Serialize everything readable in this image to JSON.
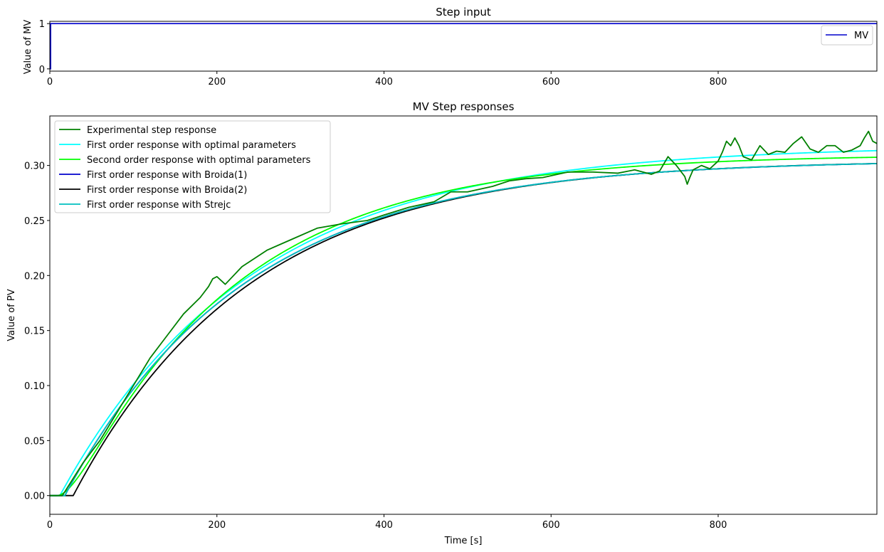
{
  "chart_data": [
    {
      "type": "line",
      "title": "Step input",
      "xlabel": "",
      "ylabel": "Value of MV",
      "xlim": [
        0,
        990
      ],
      "ylim": [
        -0.05,
        1.05
      ],
      "xticks": [
        0,
        200,
        400,
        600,
        800
      ],
      "yticks": [
        0,
        1
      ],
      "grid": false,
      "legend_position": "upper right",
      "series": [
        {
          "name": "MV",
          "color": "#0000cc",
          "x": [
            0,
            1,
            1,
            990
          ],
          "y": [
            0,
            0,
            1,
            1
          ]
        }
      ]
    },
    {
      "type": "line",
      "title": "MV Step responses",
      "xlabel": "Time [s]",
      "ylabel": "Value of PV",
      "xlim": [
        0,
        990
      ],
      "ylim": [
        -0.017,
        0.345
      ],
      "xticks": [
        0,
        200,
        400,
        600,
        800
      ],
      "yticks": [
        0.0,
        0.05,
        0.1,
        0.15,
        0.2,
        0.25,
        0.3
      ],
      "ytick_labels": [
        "0.00",
        "0.05",
        "0.10",
        "0.15",
        "0.20",
        "0.25",
        "0.30"
      ],
      "grid": false,
      "legend_position": "upper left",
      "series": [
        {
          "name": "Experimental step response",
          "color": "#008000",
          "x": [
            0,
            15,
            25,
            40,
            60,
            80,
            100,
            120,
            140,
            160,
            180,
            190,
            195,
            200,
            210,
            230,
            260,
            290,
            320,
            350,
            380,
            400,
            430,
            460,
            480,
            500,
            530,
            550,
            570,
            590,
            620,
            650,
            680,
            700,
            720,
            730,
            740,
            750,
            760,
            763,
            766,
            770,
            780,
            790,
            800,
            805,
            810,
            815,
            820,
            825,
            830,
            840,
            850,
            860,
            870,
            880,
            890,
            900,
            910,
            920,
            930,
            940,
            950,
            960,
            970,
            975,
            980,
            985,
            990
          ],
          "y": [
            0,
            0,
            0.012,
            0.03,
            0.05,
            0.075,
            0.1,
            0.125,
            0.145,
            0.165,
            0.18,
            0.19,
            0.197,
            0.199,
            0.192,
            0.208,
            0.223,
            0.233,
            0.243,
            0.247,
            0.25,
            0.255,
            0.262,
            0.267,
            0.276,
            0.276,
            0.281,
            0.286,
            0.288,
            0.289,
            0.294,
            0.294,
            0.293,
            0.296,
            0.292,
            0.295,
            0.308,
            0.3,
            0.29,
            0.283,
            0.289,
            0.296,
            0.3,
            0.297,
            0.304,
            0.312,
            0.322,
            0.318,
            0.325,
            0.318,
            0.308,
            0.305,
            0.318,
            0.31,
            0.313,
            0.312,
            0.32,
            0.326,
            0.315,
            0.312,
            0.318,
            0.318,
            0.312,
            0.314,
            0.318,
            0.325,
            0.331,
            0.322,
            0.32
          ]
        },
        {
          "name": "First order response with optimal parameters",
          "color": "#00ffff",
          "model": {
            "order": 1,
            "K": 0.318,
            "T": 230,
            "theta": 12
          }
        },
        {
          "name": "Second order response with optimal parameters",
          "color": "#00ff00",
          "model": {
            "order": 2,
            "K": 0.31,
            "T1": 200,
            "T2": 20,
            "theta": 8
          }
        },
        {
          "name": "First order response with Broida(1)",
          "color": "#0000cc",
          "model": {
            "order": 1,
            "K": 0.305,
            "T": 215,
            "theta": 18
          }
        },
        {
          "name": "First order response with Broida(2)",
          "color": "#000000",
          "model": {
            "order": 1,
            "K": 0.305,
            "T": 212,
            "theta": 28
          }
        },
        {
          "name": "First order response with Strejc",
          "color": "#00bfbf",
          "model": {
            "order": 1,
            "K": 0.305,
            "T": 215,
            "theta": 18
          }
        }
      ]
    }
  ]
}
